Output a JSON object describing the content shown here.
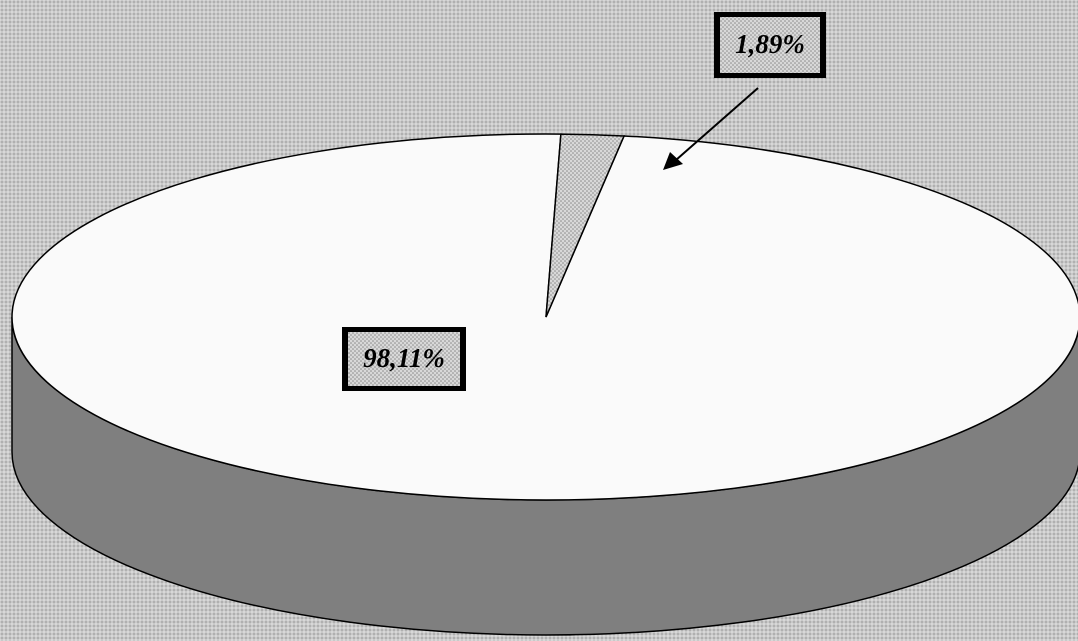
{
  "chart_data": {
    "type": "pie",
    "style": "3d",
    "slices": [
      {
        "value": 98.11,
        "label": "98,11%",
        "color": "#fafafa"
      },
      {
        "value": 1.89,
        "label": "1,89%",
        "color": "#b8b8b8",
        "pattern": "dotted"
      }
    ],
    "side_color": "#7f7f7f",
    "legend": false
  }
}
